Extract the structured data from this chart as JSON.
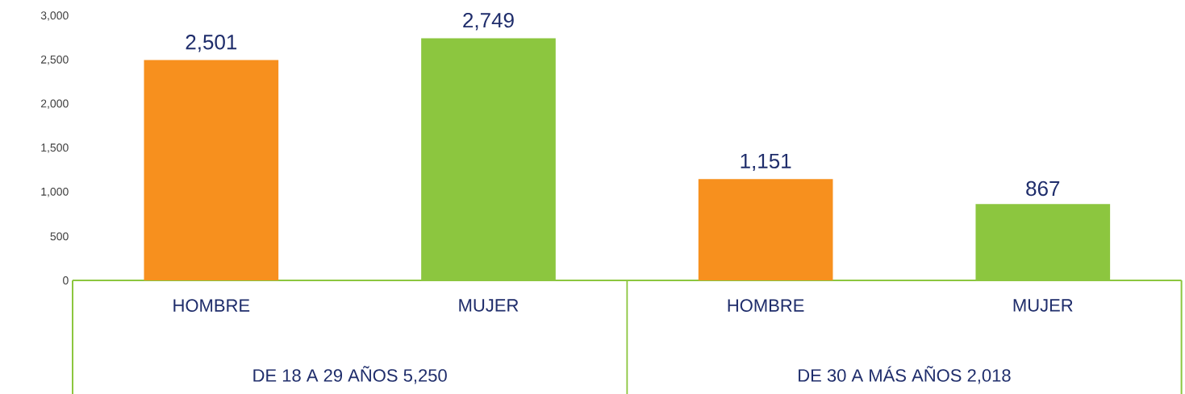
{
  "chart_data": {
    "type": "bar",
    "categories": [
      "HOMBRE",
      "MUJER",
      "HOMBRE",
      "MUJER"
    ],
    "values": [
      2501,
      2749,
      1151,
      867
    ],
    "colors": [
      "#f7901e",
      "#8cc63f",
      "#f7901e",
      "#8cc63f"
    ],
    "value_labels": [
      "2,501",
      "2,749",
      "1,151",
      "867"
    ],
    "ylim": [
      0,
      3000
    ],
    "yticks": [
      0,
      500,
      {
        "value": 1000,
        "label": "1,000"
      },
      {
        "value": 1500,
        "label": "1,500"
      },
      {
        "value": 2000,
        "label": "2,000"
      },
      {
        "value": 2500,
        "label": "2,500"
      },
      {
        "value": 3000,
        "label": "3,000"
      }
    ],
    "annotations": [
      "DE 18 A 29 AÑOS  5,250",
      "DE 30 A MÁS AÑOS  2,018"
    ]
  }
}
